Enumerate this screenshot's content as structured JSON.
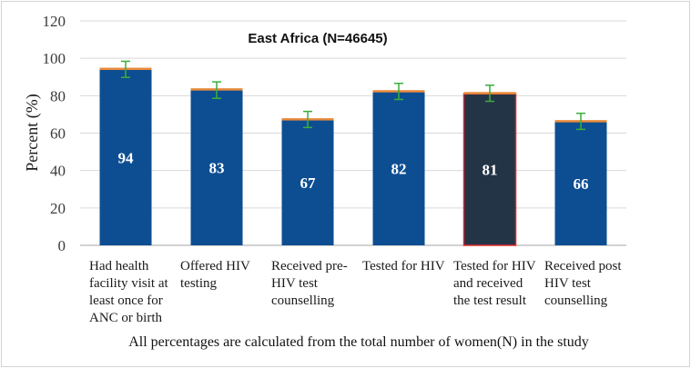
{
  "chart_data": {
    "type": "bar",
    "title": "East Africa (N=46645)",
    "ylabel": "Percent (%)",
    "xlabel": "",
    "ylim": [
      0,
      120
    ],
    "yticks": [
      0,
      20,
      40,
      60,
      80,
      100,
      120
    ],
    "grid": true,
    "categories": [
      [
        "Had health",
        "facility visit at",
        "least once for",
        "ANC or birth"
      ],
      [
        "Offered HIV",
        "testing"
      ],
      [
        "Received pre-",
        "HIV test",
        "counselling"
      ],
      [
        "Tested for HIV"
      ],
      [
        "Tested for HIV",
        "and received",
        "the test result"
      ],
      [
        "Received post",
        "HIV test",
        "counselling"
      ]
    ],
    "values": [
      94,
      83,
      67,
      82,
      81,
      66
    ],
    "error_bars": [
      {
        "low": 89.8,
        "high": 98.4
      },
      {
        "low": 78.6,
        "high": 87.4
      },
      {
        "low": 63.0,
        "high": 71.6
      },
      {
        "low": 78.0,
        "high": 86.6
      },
      {
        "low": 77.0,
        "high": 85.6
      },
      {
        "low": 62.0,
        "high": 70.6
      }
    ],
    "highlighted_index": 4,
    "footnote": "All percentages are calculated from the total number of women(N) in the study",
    "colors": {
      "bar": "#0d4e92",
      "bar_highlight": "#243447",
      "highlight_border": "#e0262a",
      "cap": "#e98a3a",
      "error": "#3aae3a",
      "grid": "#d9d9d9",
      "axis": "#a6a6a6"
    }
  }
}
